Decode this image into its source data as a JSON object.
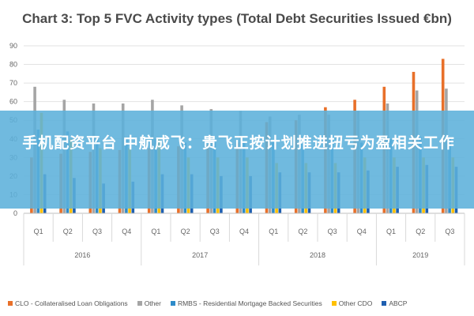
{
  "chart_data": {
    "type": "bar",
    "title": "Chart 3: Top 5 FVC Activity types (Total Debt Securities Issued €bn)",
    "xlabel": "",
    "ylabel": "",
    "ylim": [
      0,
      90
    ],
    "yticks": [
      0,
      10,
      20,
      30,
      40,
      50,
      60,
      70,
      80,
      90
    ],
    "grid": true,
    "legend_position": "bottom",
    "groups": [
      {
        "label": "2016",
        "quarters": [
          "Q1",
          "Q2",
          "Q3",
          "Q4"
        ]
      },
      {
        "label": "2017",
        "quarters": [
          "Q1",
          "Q2",
          "Q3",
          "Q4"
        ]
      },
      {
        "label": "2018",
        "quarters": [
          "Q1",
          "Q2",
          "Q3",
          "Q4"
        ]
      },
      {
        "label": "2019",
        "quarters": [
          "Q1",
          "Q2",
          "Q3"
        ]
      }
    ],
    "series": [
      {
        "name": "CLO - Collateralised Loan Obligations",
        "color": "#e8702a",
        "values": [
          30,
          32,
          33,
          34,
          35,
          36,
          37,
          38,
          49,
          50,
          57,
          61,
          68,
          76,
          83
        ]
      },
      {
        "name": "Other",
        "color": "#a5a5a5",
        "values": [
          68,
          61,
          59,
          59,
          61,
          58,
          56,
          55,
          52,
          53,
          53,
          55,
          59,
          66,
          67
        ]
      },
      {
        "name": "RMBS - Residential Mortgage Backed Securities",
        "color": "#2e8bc9",
        "values": [
          45,
          44,
          41,
          40,
          40,
          38,
          38,
          38,
          39,
          41,
          39,
          38,
          40,
          41,
          40
        ]
      },
      {
        "name": "Other CDO",
        "color": "#ffc000",
        "values": [
          54,
          40,
          35,
          35,
          40,
          30,
          30,
          30,
          27,
          27,
          27,
          30,
          30,
          30,
          30
        ]
      },
      {
        "name": "ABCP",
        "color": "#1f5fb0",
        "values": [
          21,
          19,
          16,
          17,
          21,
          21,
          20,
          20,
          22,
          22,
          22,
          23,
          25,
          26,
          25
        ]
      }
    ]
  },
  "overlay": {
    "text": "手机配资平台 中航成飞：贵飞正按计划推进扭亏为盈相关工作"
  }
}
